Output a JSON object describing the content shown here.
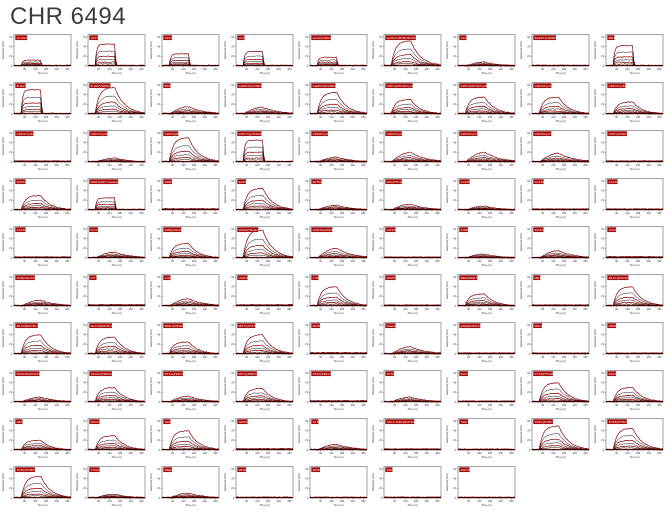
{
  "title": "CHR 6494",
  "chart_data": {
    "type": "line",
    "subtype": "small-multiples-SPR-sensorgrams",
    "compound": "CHR 6494",
    "title": "CHR 6494",
    "xlabel": "Time (s)",
    "ylabel": "Response (RU)",
    "x_ticks": [
      60,
      120,
      180,
      240,
      300
    ],
    "y_ticks": [
      0,
      20,
      40,
      60
    ],
    "x_range": [
      0,
      320
    ],
    "y_range": [
      0,
      65
    ],
    "grid": {
      "rows": 10,
      "cols": 9
    },
    "legend": "none",
    "trace_colors": [
      "#8b0000",
      "#000000"
    ],
    "label_bg": "#b00000",
    "label_fg": "#ffffff",
    "tiles": [
      {
        "name": "ACVR2A",
        "peak": 12,
        "shape": "square"
      },
      {
        "name": "AKT1",
        "peak": 45,
        "shape": "square"
      },
      {
        "name": "AKT2",
        "peak": 25,
        "shape": "square"
      },
      {
        "name": "ALK",
        "peak": 30,
        "shape": "square"
      },
      {
        "name": "AurA(AURKA)",
        "peak": 18,
        "shape": "square"
      },
      {
        "name": "AurB(AURKB)/INCENP",
        "peak": 52,
        "shape": "decay"
      },
      {
        "name": "AXL",
        "peak": 8,
        "shape": "bump"
      },
      {
        "name": "BARK1(ADRBK1)",
        "peak": 3,
        "shape": "flat"
      },
      {
        "name": "BMX",
        "peak": 42,
        "shape": "square"
      },
      {
        "name": "B-Raf",
        "peak": 50,
        "shape": "square"
      },
      {
        "name": "B-Raf(V600E)",
        "peak": 55,
        "shape": "decay"
      },
      {
        "name": "BTK",
        "peak": 15,
        "shape": "bump"
      },
      {
        "name": "CaMK2b(CAMK2B)",
        "peak": 14,
        "shape": "bump"
      },
      {
        "name": "CaMK2d(CAMK2D)",
        "peak": 45,
        "shape": "decay"
      },
      {
        "name": "CDK1(CDC2)/CycA2",
        "peak": 30,
        "shape": "decay"
      },
      {
        "name": "CDK1(CDC2)/CycB1",
        "peak": 35,
        "shape": "decay"
      },
      {
        "name": "CDK2/CycA2",
        "peak": 35,
        "shape": "decay"
      },
      {
        "name": "CDK2/CycE1",
        "peak": 25,
        "shape": "decay"
      },
      {
        "name": "CDK3/CycE1",
        "peak": 6,
        "shape": "flat"
      },
      {
        "name": "CDK4/CycD3",
        "peak": 8,
        "shape": "bump"
      },
      {
        "name": "CDK5/p25",
        "peak": 50,
        "shape": "decay"
      },
      {
        "name": "CDK7/CycH/MAT1",
        "peak": 45,
        "shape": "square"
      },
      {
        "name": "CDK8/CycC",
        "peak": 10,
        "shape": "bump"
      },
      {
        "name": "CDK9/CycK",
        "peak": 20,
        "shape": "bump"
      },
      {
        "name": "CDK9/CycT1",
        "peak": 20,
        "shape": "bump"
      },
      {
        "name": "CDK9/CycT2",
        "peak": 18,
        "shape": "bump"
      },
      {
        "name": "CHK1(CHEK1)",
        "peak": 6,
        "shape": "flat"
      },
      {
        "name": "DAPK1",
        "peak": 30,
        "shape": "decay"
      },
      {
        "name": "DDR1(SRC treated)",
        "peak": 25,
        "shape": "square"
      },
      {
        "name": "DDR2",
        "peak": 8,
        "shape": "flat"
      },
      {
        "name": "EGFR",
        "peak": 45,
        "shape": "decay"
      },
      {
        "name": "EPHA2",
        "peak": 10,
        "shape": "bump"
      },
      {
        "name": "FAK(PTK2)",
        "peak": 12,
        "shape": "bump"
      },
      {
        "name": "FGFR1",
        "peak": 8,
        "shape": "bump"
      },
      {
        "name": "FGFR2",
        "peak": 6,
        "shape": "flat"
      },
      {
        "name": "FGFR3",
        "peak": 6,
        "shape": "flat"
      },
      {
        "name": "FGFR4",
        "peak": 6,
        "shape": "flat"
      },
      {
        "name": "FLT3",
        "peak": 12,
        "shape": "bump"
      },
      {
        "name": "FMS(CSF1R)",
        "peak": 30,
        "shape": "decay"
      },
      {
        "name": "GSG2(Haspin)",
        "peak": 58,
        "shape": "decay"
      },
      {
        "name": "GSK3b(GSK3B)",
        "peak": 20,
        "shape": "bump"
      },
      {
        "name": "IGF1R",
        "peak": 5,
        "shape": "flat"
      },
      {
        "name": "INSR",
        "peak": 8,
        "shape": "bump"
      },
      {
        "name": "IRAK4",
        "peak": 15,
        "shape": "bump"
      },
      {
        "name": "JAK2",
        "peak": 8,
        "shape": "flat"
      },
      {
        "name": "KDR(VEGFR2)",
        "peak": 12,
        "shape": "bump"
      },
      {
        "name": "KIT",
        "peak": 8,
        "shape": "flat"
      },
      {
        "name": "LCK",
        "peak": 15,
        "shape": "bump"
      },
      {
        "name": "LIMK2",
        "peak": 8,
        "shape": "flat"
      },
      {
        "name": "LYN",
        "peak": 40,
        "shape": "decay"
      },
      {
        "name": "MAPK6",
        "peak": 5,
        "shape": "flat"
      },
      {
        "name": "MER(MERTK)",
        "peak": 25,
        "shape": "decay"
      },
      {
        "name": "MET",
        "peak": 6,
        "shape": "flat"
      },
      {
        "name": "MLK1(MAP3K9)",
        "peak": 40,
        "shape": "decay"
      },
      {
        "name": "MLK2(MAP3K10)",
        "peak": 40,
        "shape": "decay"
      },
      {
        "name": "MLK3(MAP3K11)",
        "peak": 35,
        "shape": "decay"
      },
      {
        "name": "MNK1(MKNK1)",
        "peak": 25,
        "shape": "decay"
      },
      {
        "name": "MST2(STK3)",
        "peak": 40,
        "shape": "decay"
      },
      {
        "name": "MUSK",
        "peak": 8,
        "shape": "flat"
      },
      {
        "name": "Nuak2",
        "peak": 15,
        "shape": "bump"
      },
      {
        "name": "p38a(MAPK14)",
        "peak": 6,
        "shape": "flat"
      },
      {
        "name": "PAK4",
        "peak": 5,
        "shape": "flat"
      },
      {
        "name": "PAK6",
        "peak": 5,
        "shape": "flat"
      },
      {
        "name": "PDGFRb(PDGFRB)",
        "peak": 10,
        "shape": "bump"
      },
      {
        "name": "PKACa(PRKACA)",
        "peak": 30,
        "shape": "decay"
      },
      {
        "name": "PKCa(PRKCA)",
        "peak": 12,
        "shape": "bump"
      },
      {
        "name": "PKCg(PRKCG)",
        "peak": 28,
        "shape": "decay"
      },
      {
        "name": "PKCh(PRKCH)",
        "peak": 8,
        "shape": "flat"
      },
      {
        "name": "PKN1",
        "peak": 10,
        "shape": "bump"
      },
      {
        "name": "PLK1",
        "peak": 5,
        "shape": "flat"
      },
      {
        "name": "PYK2(PTK2B)",
        "peak": 40,
        "shape": "decay"
      },
      {
        "name": "RAF1",
        "peak": 30,
        "shape": "decay"
      },
      {
        "name": "RET",
        "peak": 20,
        "shape": "decay"
      },
      {
        "name": "ROCK1",
        "peak": 30,
        "shape": "decay"
      },
      {
        "name": "SRC",
        "peak": 40,
        "shape": "decay"
      },
      {
        "name": "SRPK1",
        "peak": 8,
        "shape": "flat"
      },
      {
        "name": "SYK",
        "peak": 12,
        "shape": "bump"
      },
      {
        "name": "TAK1-TAB1(MAP3K7)",
        "peak": 6,
        "shape": "flat"
      },
      {
        "name": "TIE2",
        "peak": 4,
        "shape": "flat"
      },
      {
        "name": "TRKA(NTRK1)",
        "peak": 50,
        "shape": "decay"
      },
      {
        "name": "TRKB(NTRK2)",
        "peak": 45,
        "shape": "decay"
      },
      {
        "name": "TRKC(NTRK3)",
        "peak": 45,
        "shape": "decay"
      },
      {
        "name": "TYRO3",
        "peak": 8,
        "shape": "bump"
      },
      {
        "name": "WEE1",
        "peak": 10,
        "shape": "bump"
      },
      {
        "name": "WNK1",
        "peak": 4,
        "shape": "flat"
      },
      {
        "name": "WNK3",
        "peak": 3,
        "shape": "flat"
      },
      {
        "name": "ZAK",
        "peak": 4,
        "shape": "flat"
      },
      {
        "name": "ZAP70",
        "peak": 3,
        "shape": "flat"
      },
      null,
      null
    ]
  }
}
